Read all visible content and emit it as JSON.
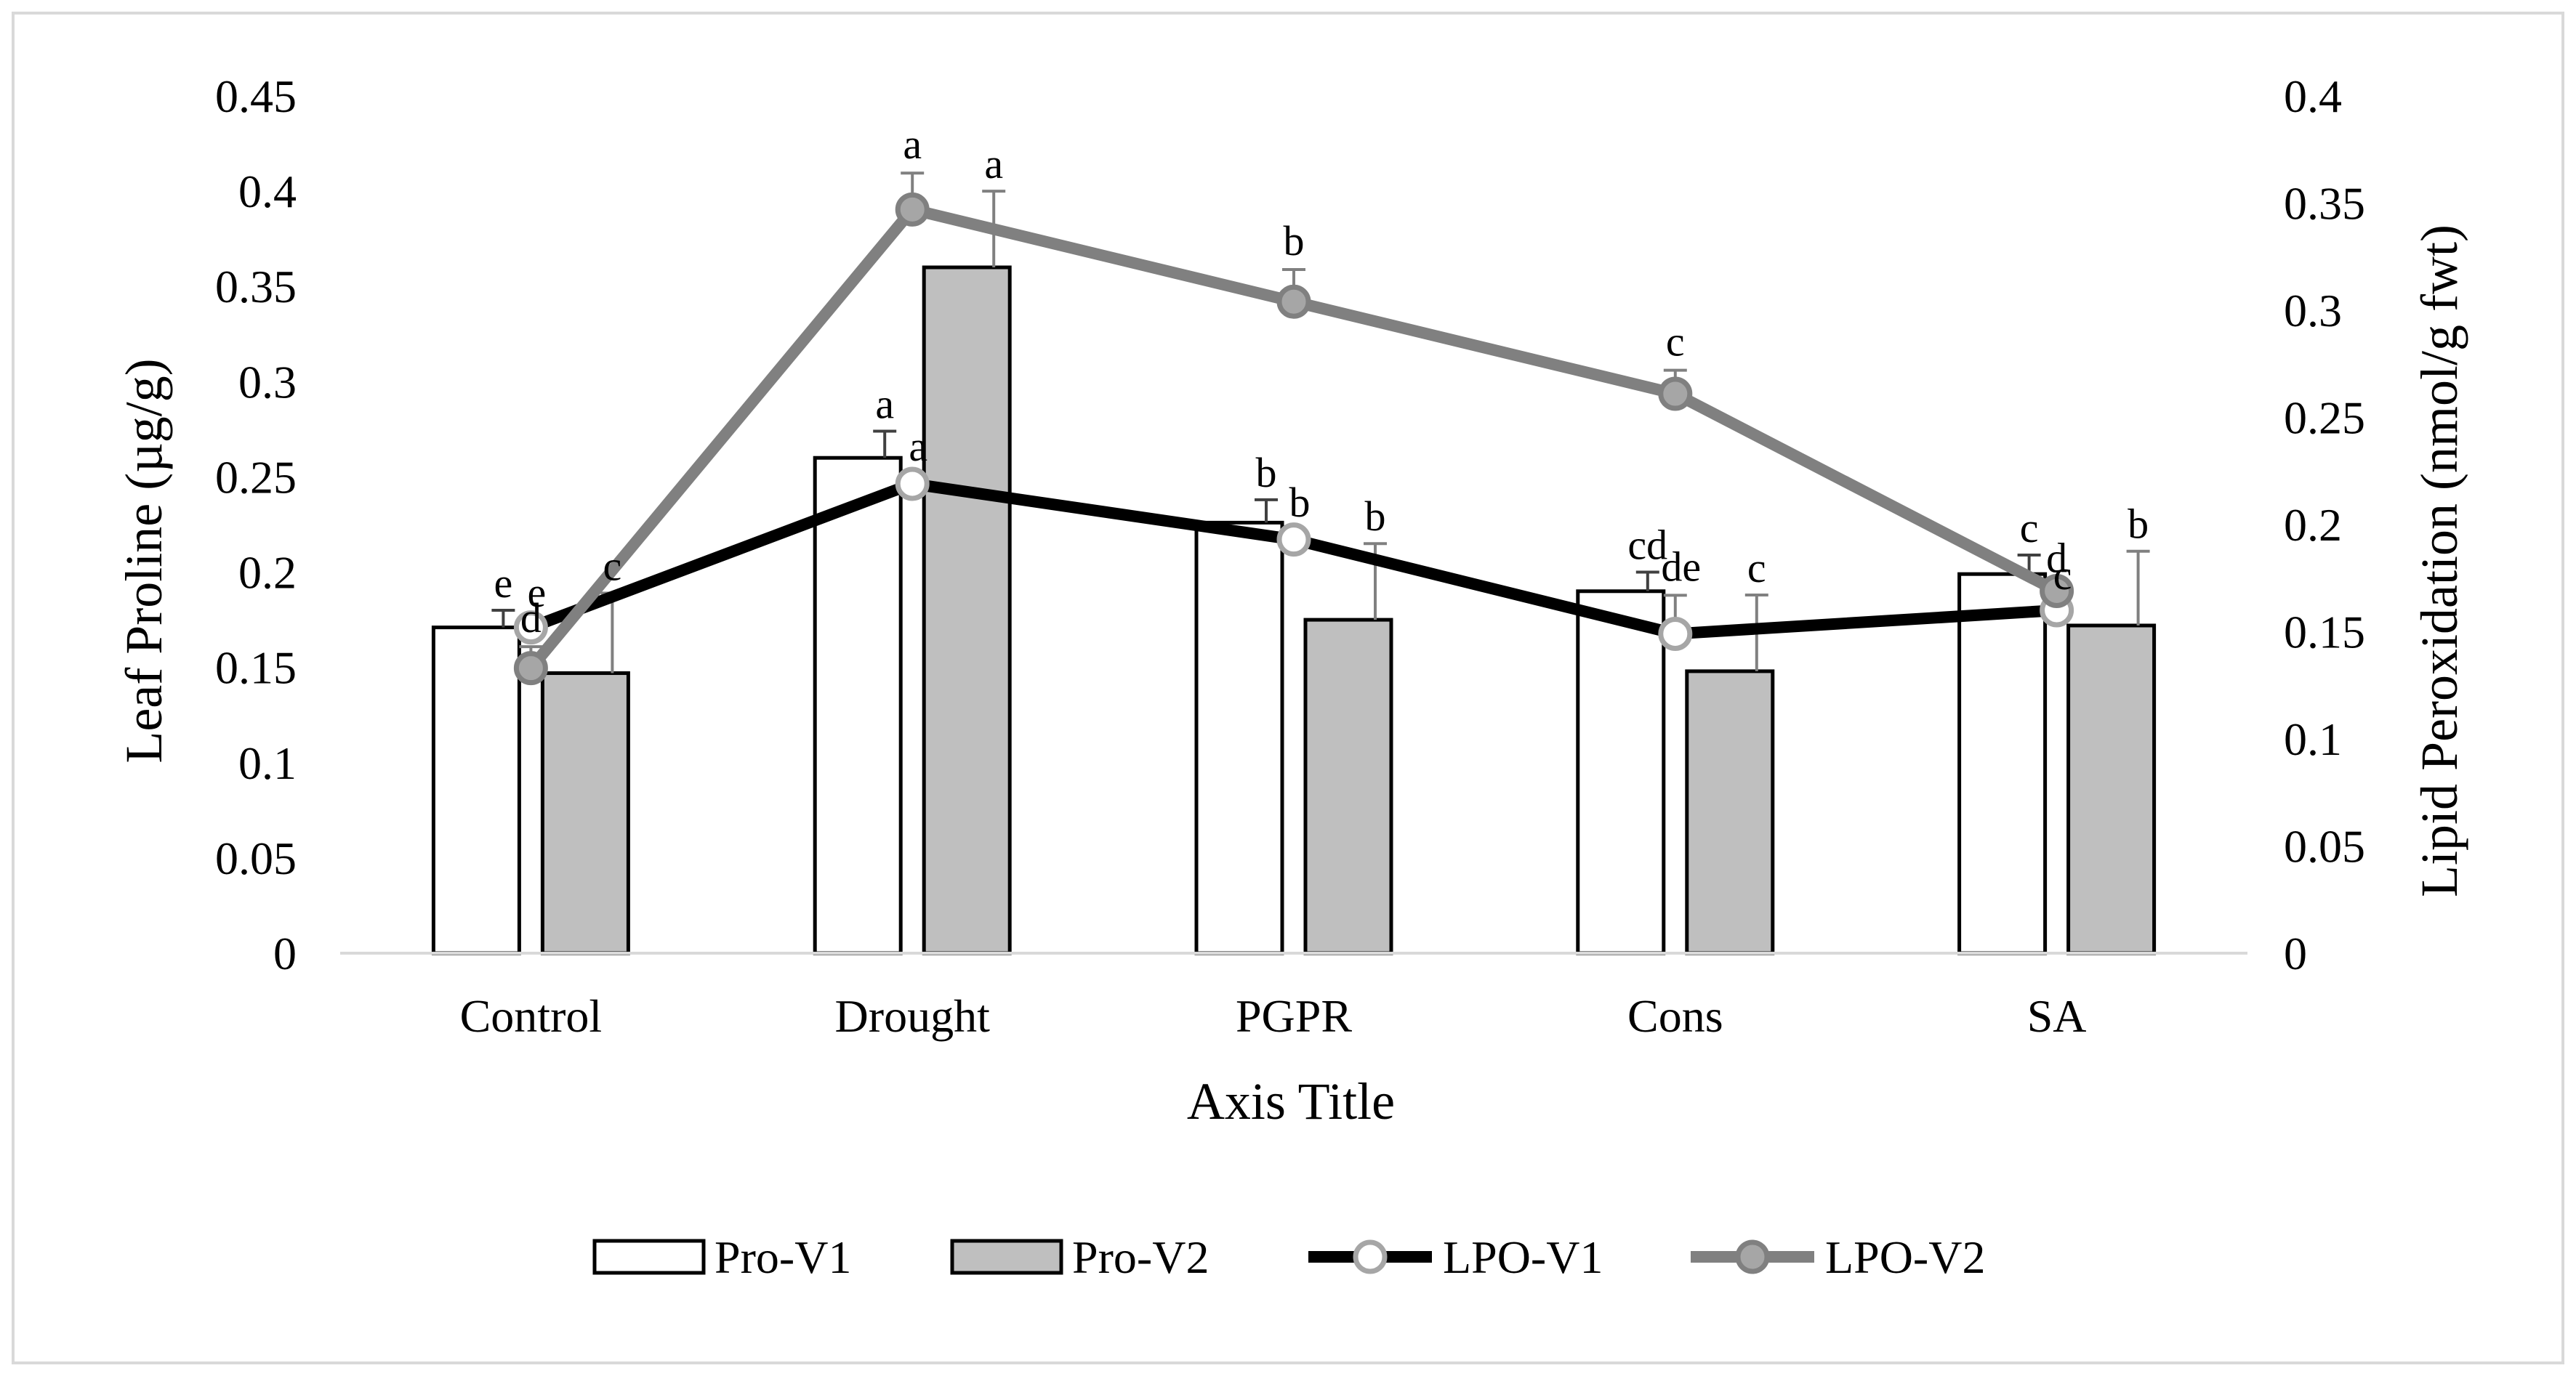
{
  "chart_data": {
    "type": "bar",
    "title": "",
    "categories": [
      "Control",
      "Drought",
      "PGPR",
      "Cons",
      "SA"
    ],
    "xlabel": "Axis Title",
    "ylabel": "Leaf Proline (µg/g)",
    "y2label": "Lipid Peroxidation (nmol/g fwt)",
    "ylim": [
      0,
      0.45
    ],
    "y2lim": [
      0,
      0.4
    ],
    "yticks": [
      "0",
      "0.05",
      "0.1",
      "0.15",
      "0.2",
      "0.25",
      "0.3",
      "0.35",
      "0.4",
      "0.45"
    ],
    "y2ticks": [
      "0",
      "0.05",
      "0.1",
      "0.15",
      "0.2",
      "0.25",
      "0.3",
      "0.35",
      "0.4"
    ],
    "grid": false,
    "legend_position": "bottom",
    "bars": [
      {
        "name": "Pro-V1",
        "fill": "#ffffff",
        "values": [
          0.171,
          0.26,
          0.226,
          0.19,
          0.199
        ],
        "errors": [
          0.009,
          0.014,
          0.012,
          0.01,
          0.01
        ],
        "labels": [
          "e",
          "a",
          "b",
          "cd",
          "c"
        ]
      },
      {
        "name": "Pro-V2",
        "fill": "#bfbfbf",
        "values": [
          0.147,
          0.36,
          0.175,
          0.148,
          0.172
        ],
        "errors": [
          0.042,
          0.04,
          0.04,
          0.04,
          0.039
        ],
        "labels": [
          "c",
          "a",
          "b",
          "c",
          "b"
        ]
      }
    ],
    "lines": [
      {
        "name": "LPO-V1",
        "color": "#000000",
        "marker_fill": "#ffffff",
        "marker_edge": "#a6a6a6",
        "values": [
          0.152,
          0.219,
          0.193,
          0.149,
          0.16
        ],
        "errors": [
          0.003,
          0.004,
          0.004,
          0.018,
          0.003
        ],
        "labels": [
          "e",
          "a",
          "b",
          "de",
          "c"
        ]
      },
      {
        "name": "LPO-V2",
        "color": "#808080",
        "marker_fill": "#a6a6a6",
        "marker_edge": "#808080",
        "values": [
          0.133,
          0.347,
          0.304,
          0.261,
          0.169
        ],
        "errors": [
          0.01,
          0.017,
          0.015,
          0.011,
          0.002
        ],
        "labels": [
          "d",
          "a",
          "b",
          "c",
          "d"
        ]
      }
    ]
  }
}
